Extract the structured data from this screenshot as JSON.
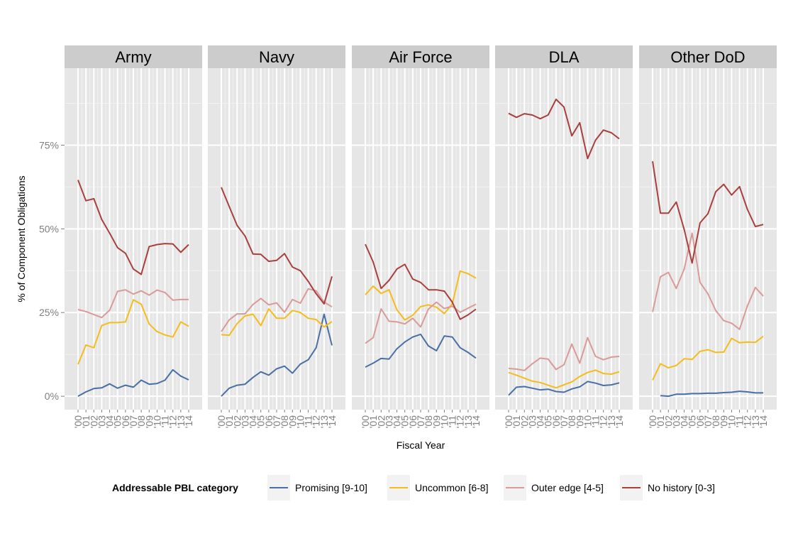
{
  "chart_data": {
    "type": "line",
    "facet_by": "component",
    "ylabel": "% of Component Obligations",
    "xlabel": "Fiscal Year",
    "x": [
      "00",
      "01",
      "02",
      "03",
      "04",
      "05",
      "06",
      "07",
      "08",
      "09",
      "10",
      "11",
      "12",
      "13",
      "14"
    ],
    "x_tick_labels": [
      "'00",
      "'01",
      "'02",
      "'03",
      "'04",
      "'05",
      "'06",
      "'07",
      "'08",
      "'09",
      "'10",
      "'11",
      "'12",
      "'13",
      "'14"
    ],
    "ylim": [
      -0.04,
      0.98
    ],
    "y_ticks": [
      0,
      0.25,
      0.5,
      0.75
    ],
    "y_tick_labels": [
      "0%",
      "25%",
      "50%",
      "75%"
    ],
    "grid": true,
    "legend": {
      "position": "bottom",
      "title": "Addressable PBL category",
      "entries": [
        "Promising [9-10]",
        "Uncommon [6-8]",
        "Outer edge [4-5]",
        "No history [0-3]"
      ]
    },
    "colors": {
      "Promising [9-10]": "#4a6fa5",
      "Uncommon [6-8]": "#f5bc1c",
      "Outer edge [4-5]": "#d99a98",
      "No history [0-3]": "#a8403d",
      "panel_background": "#e6e6e6",
      "strip_background": "#cccccc"
    },
    "panels": [
      {
        "title": "Army",
        "series": [
          {
            "name": "Promising [9-10]",
            "values": [
              0.0,
              0.013,
              0.023,
              0.025,
              0.037,
              0.024,
              0.033,
              0.027,
              0.048,
              0.036,
              0.038,
              0.048,
              0.079,
              0.06,
              0.049
            ]
          },
          {
            "name": "Uncommon [6-8]",
            "values": [
              0.095,
              0.153,
              0.145,
              0.211,
              0.22,
              0.22,
              0.222,
              0.288,
              0.275,
              0.216,
              0.193,
              0.183,
              0.177,
              0.222,
              0.209
            ]
          },
          {
            "name": "Outer edge [4-5]",
            "values": [
              0.259,
              0.253,
              0.244,
              0.235,
              0.257,
              0.313,
              0.318,
              0.305,
              0.315,
              0.302,
              0.317,
              0.31,
              0.287,
              0.289,
              0.289
            ]
          },
          {
            "name": "No history [0-3]",
            "values": [
              0.646,
              0.584,
              0.59,
              0.528,
              0.487,
              0.444,
              0.427,
              0.38,
              0.364,
              0.447,
              0.453,
              0.456,
              0.455,
              0.43,
              0.453
            ]
          }
        ]
      },
      {
        "title": "Navy",
        "series": [
          {
            "name": "Promising [9-10]",
            "values": [
              0.0,
              0.024,
              0.033,
              0.036,
              0.056,
              0.073,
              0.063,
              0.082,
              0.09,
              0.069,
              0.096,
              0.109,
              0.145,
              0.245,
              0.152
            ]
          },
          {
            "name": "Uncommon [6-8]",
            "values": [
              0.184,
              0.182,
              0.217,
              0.24,
              0.245,
              0.211,
              0.261,
              0.233,
              0.233,
              0.256,
              0.25,
              0.233,
              0.229,
              0.207,
              0.223
            ]
          },
          {
            "name": "Outer edge [4-5]",
            "values": [
              0.193,
              0.228,
              0.246,
              0.246,
              0.274,
              0.292,
              0.273,
              0.279,
              0.251,
              0.289,
              0.278,
              0.321,
              0.315,
              0.281,
              0.267
            ]
          },
          {
            "name": "No history [0-3]",
            "values": [
              0.624,
              0.567,
              0.51,
              0.479,
              0.425,
              0.424,
              0.403,
              0.406,
              0.426,
              0.386,
              0.375,
              0.343,
              0.306,
              0.276,
              0.358
            ]
          }
        ]
      },
      {
        "title": "Air Force",
        "series": [
          {
            "name": "Promising [9-10]",
            "values": [
              0.087,
              0.099,
              0.113,
              0.111,
              0.142,
              0.162,
              0.177,
              0.185,
              0.15,
              0.136,
              0.18,
              0.177,
              0.145,
              0.131,
              0.114
            ]
          },
          {
            "name": "Uncommon [6-8]",
            "values": [
              0.303,
              0.329,
              0.307,
              0.318,
              0.258,
              0.228,
              0.242,
              0.268,
              0.273,
              0.266,
              0.247,
              0.276,
              0.374,
              0.366,
              0.353
            ]
          },
          {
            "name": "Outer edge [4-5]",
            "values": [
              0.158,
              0.175,
              0.261,
              0.224,
              0.222,
              0.216,
              0.233,
              0.207,
              0.261,
              0.281,
              0.262,
              0.269,
              0.251,
              0.263,
              0.275
            ]
          },
          {
            "name": "No history [0-3]",
            "values": [
              0.454,
              0.401,
              0.322,
              0.346,
              0.38,
              0.394,
              0.35,
              0.34,
              0.318,
              0.318,
              0.314,
              0.281,
              0.23,
              0.243,
              0.26
            ]
          }
        ]
      },
      {
        "title": "DLA",
        "series": [
          {
            "name": "Promising [9-10]",
            "values": [
              0.003,
              0.027,
              0.029,
              0.024,
              0.019,
              0.021,
              0.014,
              0.012,
              0.022,
              0.028,
              0.044,
              0.039,
              0.032,
              0.034,
              0.04
            ]
          },
          {
            "name": "Uncommon [6-8]",
            "values": [
              0.071,
              0.063,
              0.054,
              0.045,
              0.041,
              0.033,
              0.025,
              0.034,
              0.043,
              0.059,
              0.071,
              0.078,
              0.068,
              0.066,
              0.073
            ]
          },
          {
            "name": "Outer edge [4-5]",
            "values": [
              0.083,
              0.081,
              0.077,
              0.097,
              0.114,
              0.111,
              0.08,
              0.094,
              0.156,
              0.099,
              0.175,
              0.119,
              0.109,
              0.117,
              0.119
            ]
          },
          {
            "name": "No history [0-3]",
            "values": [
              0.845,
              0.833,
              0.844,
              0.84,
              0.829,
              0.84,
              0.887,
              0.864,
              0.778,
              0.817,
              0.71,
              0.765,
              0.795,
              0.787,
              0.769
            ]
          }
        ]
      },
      {
        "title": "Other DoD",
        "series": [
          {
            "name": "Promising [9-10]",
            "values": [
              null,
              0.002,
              0.0,
              0.006,
              0.006,
              0.008,
              0.008,
              0.009,
              0.009,
              0.011,
              0.012,
              0.015,
              0.013,
              0.01,
              0.01
            ]
          },
          {
            "name": "Uncommon [6-8]",
            "values": [
              0.048,
              0.097,
              0.085,
              0.092,
              0.112,
              0.11,
              0.134,
              0.139,
              0.131,
              0.132,
              0.173,
              0.16,
              0.162,
              0.161,
              0.179
            ]
          },
          {
            "name": "Outer edge [4-5]",
            "values": [
              0.252,
              0.357,
              0.37,
              0.322,
              0.38,
              0.487,
              0.34,
              0.306,
              0.256,
              0.226,
              0.218,
              0.2,
              0.27,
              0.325,
              0.299
            ]
          },
          {
            "name": "No history [0-3]",
            "values": [
              0.702,
              0.547,
              0.547,
              0.58,
              0.498,
              0.398,
              0.518,
              0.545,
              0.611,
              0.633,
              0.601,
              0.626,
              0.558,
              0.507,
              0.513
            ]
          }
        ]
      }
    ]
  }
}
